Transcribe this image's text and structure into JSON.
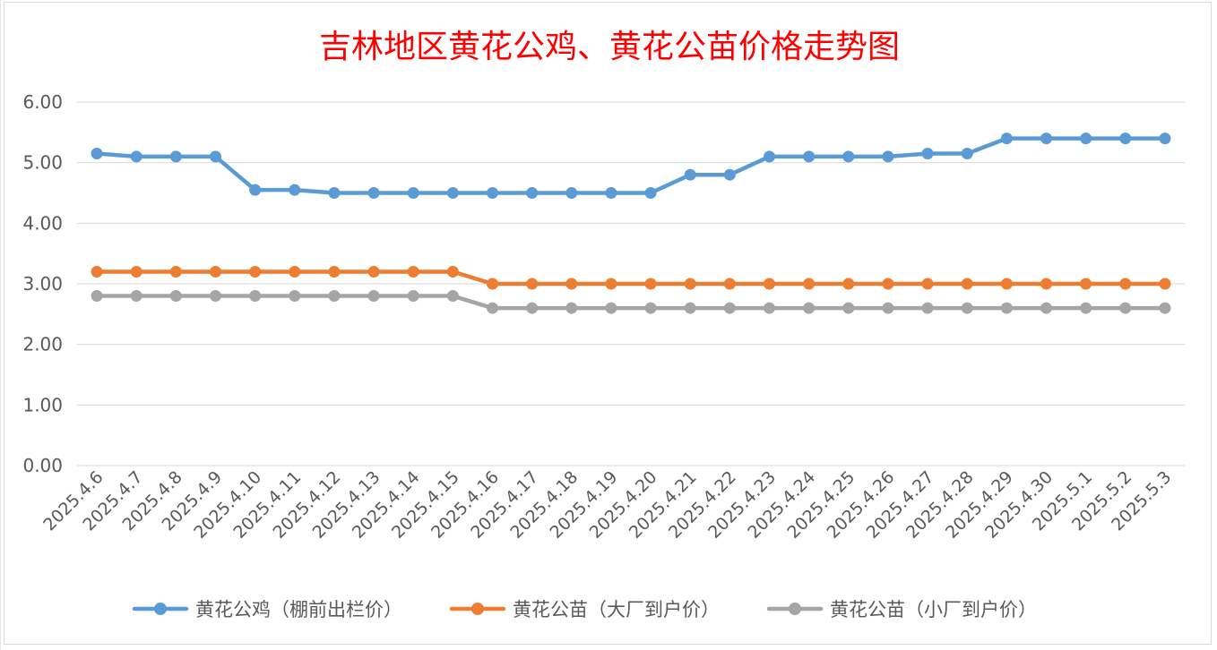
{
  "chart_data": {
    "type": "line",
    "title": "吉林地区黄花公鸡、黄花公苗价格走势图",
    "xlabel": "",
    "ylabel": "",
    "ylim": [
      0,
      6
    ],
    "yticks": [
      "0.00",
      "1.00",
      "2.00",
      "3.00",
      "4.00",
      "5.00",
      "6.00"
    ],
    "grid": true,
    "legend_position": "bottom",
    "categories": [
      "2025.4.6",
      "2025.4.7",
      "2025.4.8",
      "2025.4.9",
      "2025.4.10",
      "2025.4.11",
      "2025.4.12",
      "2025.4.13",
      "2025.4.14",
      "2025.4.15",
      "2025.4.16",
      "2025.4.17",
      "2025.4.18",
      "2025.4.19",
      "2025.4.20",
      "2025.4.21",
      "2025.4.22",
      "2025.4.23",
      "2025.4.24",
      "2025.4.25",
      "2025.4.26",
      "2025.4.27",
      "2025.4.28",
      "2025.4.29",
      "2025.4.30",
      "2025.5.1",
      "2025.5.2",
      "2025.5.3"
    ],
    "series": [
      {
        "name": "黄花公鸡（棚前出栏价）",
        "color": "#5b9bd5",
        "values": [
          5.15,
          5.1,
          5.1,
          5.1,
          4.55,
          4.55,
          4.5,
          4.5,
          4.5,
          4.5,
          4.5,
          4.5,
          4.5,
          4.5,
          4.5,
          4.8,
          4.8,
          5.1,
          5.1,
          5.1,
          5.1,
          5.15,
          5.15,
          5.4,
          5.4,
          5.4,
          5.4,
          5.4
        ]
      },
      {
        "name": "黄花公苗（大厂到户价）",
        "color": "#ed7d31",
        "values": [
          3.2,
          3.2,
          3.2,
          3.2,
          3.2,
          3.2,
          3.2,
          3.2,
          3.2,
          3.2,
          3.0,
          3.0,
          3.0,
          3.0,
          3.0,
          3.0,
          3.0,
          3.0,
          3.0,
          3.0,
          3.0,
          3.0,
          3.0,
          3.0,
          3.0,
          3.0,
          3.0,
          3.0
        ]
      },
      {
        "name": "黄花公苗（小厂到户价）",
        "color": "#a5a5a5",
        "values": [
          2.8,
          2.8,
          2.8,
          2.8,
          2.8,
          2.8,
          2.8,
          2.8,
          2.8,
          2.8,
          2.6,
          2.6,
          2.6,
          2.6,
          2.6,
          2.6,
          2.6,
          2.6,
          2.6,
          2.6,
          2.6,
          2.6,
          2.6,
          2.6,
          2.6,
          2.6,
          2.6,
          2.6
        ]
      }
    ],
    "gridline_color": "#d9d9d9"
  }
}
